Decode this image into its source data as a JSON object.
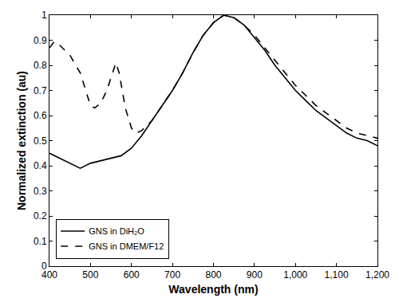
{
  "chart_data": {
    "type": "line",
    "x_label": "Wavelength (nm)",
    "y_label": "Normalized extinction (au)",
    "xlim": [
      400,
      1200
    ],
    "xticks": [
      400,
      500,
      600,
      700,
      800,
      900,
      {
        "value": 1000,
        "label": "1,000"
      },
      {
        "value": 1100,
        "label": "1,100"
      },
      {
        "value": 1200,
        "label": "1,200"
      }
    ],
    "ylim": [
      0,
      1
    ],
    "yticks": [
      0,
      0.1,
      0.2,
      0.3,
      0.4,
      0.5,
      0.6,
      0.7,
      0.8,
      0.9,
      1
    ],
    "grid": false,
    "legend": "lower left",
    "series": [
      {
        "name": "GNS in DiH₂O",
        "color": "#000000",
        "line_style": "solid",
        "x": [
          400,
          425,
          450,
          475,
          500,
          525,
          550,
          575,
          600,
          625,
          650,
          675,
          700,
          725,
          750,
          775,
          800,
          825,
          850,
          875,
          900,
          925,
          950,
          975,
          1000,
          1025,
          1050,
          1075,
          1100,
          1125,
          1150,
          1175,
          1200
        ],
        "values": [
          0.45,
          0.43,
          0.41,
          0.39,
          0.41,
          0.42,
          0.43,
          0.44,
          0.47,
          0.52,
          0.58,
          0.64,
          0.7,
          0.77,
          0.85,
          0.92,
          0.97,
          1.0,
          0.99,
          0.96,
          0.91,
          0.86,
          0.8,
          0.75,
          0.7,
          0.66,
          0.62,
          0.59,
          0.56,
          0.53,
          0.51,
          0.5,
          0.48
        ]
      },
      {
        "name": "GNS in DMEM/F12",
        "color": "#000000",
        "line_style": "dash",
        "x": [
          400,
          412,
          425,
          450,
          475,
          500,
          510,
          525,
          540,
          555,
          562,
          570,
          585,
          600,
          610,
          625,
          650,
          675,
          700,
          725,
          750,
          775,
          800,
          825,
          850,
          875,
          900,
          925,
          950,
          975,
          1000,
          1025,
          1050,
          1075,
          1100,
          1125,
          1150,
          1175,
          1200
        ],
        "values": [
          0.87,
          0.895,
          0.88,
          0.84,
          0.77,
          0.64,
          0.63,
          0.65,
          0.7,
          0.78,
          0.81,
          0.77,
          0.63,
          0.55,
          0.53,
          0.54,
          0.58,
          0.64,
          0.7,
          0.77,
          0.85,
          0.92,
          0.97,
          1.0,
          0.99,
          0.96,
          0.92,
          0.87,
          0.82,
          0.77,
          0.72,
          0.68,
          0.64,
          0.61,
          0.58,
          0.55,
          0.53,
          0.52,
          0.51
        ]
      }
    ]
  }
}
